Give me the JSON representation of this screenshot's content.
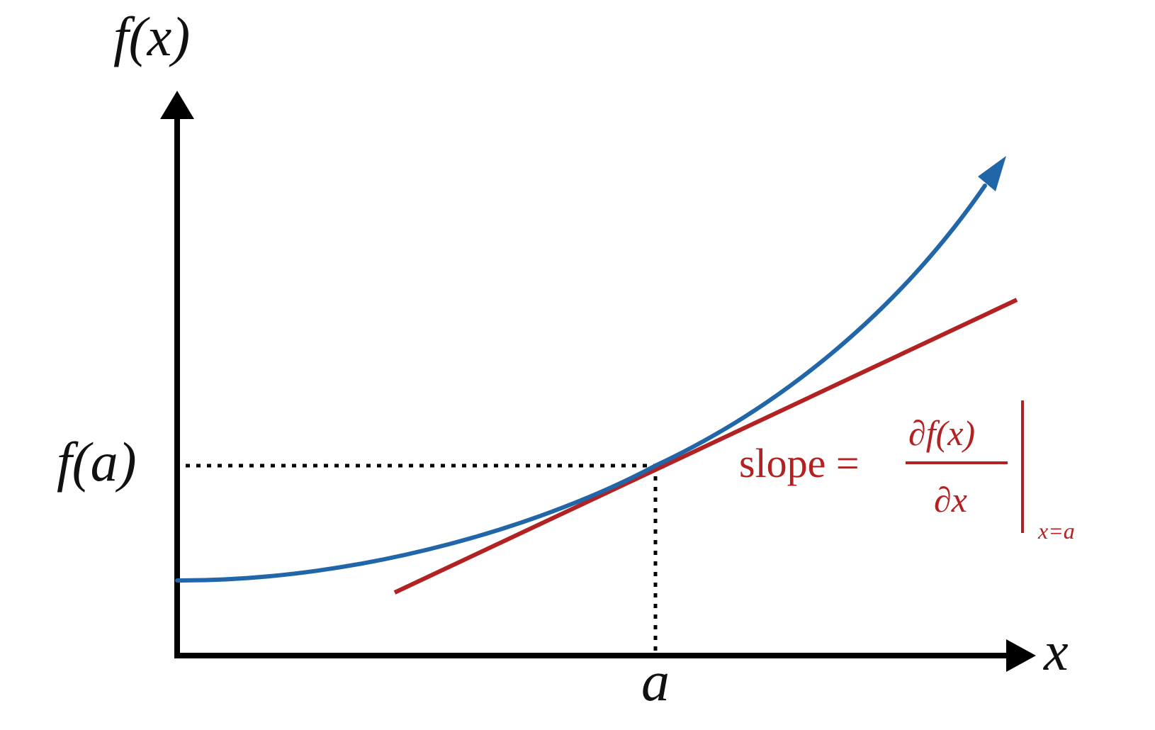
{
  "labels": {
    "y_axis": "f(x)",
    "x_axis": "x",
    "f_of_a": "f(a)",
    "a": "a"
  },
  "slope_formula": {
    "prefix": "slope =",
    "numerator": "∂f(x)",
    "denominator": "∂x",
    "evaluated_at": "x=a"
  },
  "colors": {
    "axes": "#000000",
    "curve": "#2166a8",
    "tangent": "#b32222",
    "guides": "#000000"
  },
  "icons": {
    "curve_arrow": "arrow-head-icon",
    "axis_arrows": "arrow-head-icon"
  }
}
